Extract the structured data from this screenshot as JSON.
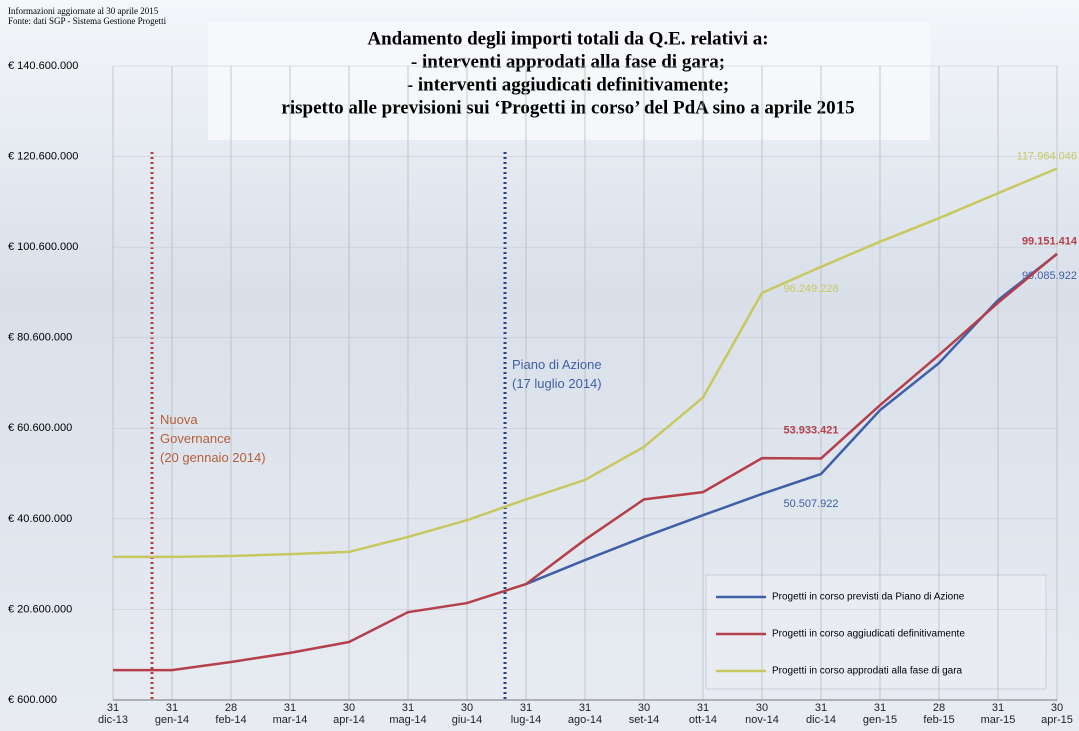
{
  "chart_data": {
    "type": "line",
    "notes": [
      "Informazioni aggiornate al 30 aprile 2015",
      "Fonte: dati SGP - Sistema Gestione Progetti"
    ],
    "title": [
      "Andamento degli importi totali da Q.E. relativi a:",
      "- interventi approdati alla fase di gara;",
      "- interventi aggiudicati definitivamente;",
      "rispetto alle previsioni sui ‘Progetti in corso’ del PdA sino a aprile 2015"
    ],
    "annotations": [
      {
        "text": "Nuova\nGovernance\n(20 gennaio 2014)",
        "color": "#b5603a"
      },
      {
        "text": "Piano di Azione\n(17 luglio 2014)",
        "color": "#3f5fa8"
      }
    ],
    "categories": [
      "31\ndic-13",
      "31\ngen-14",
      "28\nfeb-14",
      "31\nmar-14",
      "30\napr-14",
      "31\nmag-14",
      "30\ngiu-14",
      "31\nlug-14",
      "31\nago-14",
      "30\nset-14",
      "31\nott-14",
      "30\nnov-14",
      "31\ndic-14",
      "31\ngen-15",
      "28\nfeb-15",
      "31\nmar-15",
      "30\napr-15"
    ],
    "series": [
      {
        "name": "Progetti in corso previsti da Piano di Azione",
        "color": "#3f5fa8",
        "values": [
          null,
          null,
          null,
          null,
          null,
          null,
          null,
          26200000,
          31500000,
          36600000,
          41400000,
          46100000,
          50507922,
          64600000,
          75000000,
          88900000,
          99085922
        ],
        "value_labels": [
          null,
          null,
          null,
          null,
          null,
          null,
          null,
          null,
          null,
          null,
          null,
          null,
          "50.507.922",
          null,
          null,
          null,
          "99.085.922"
        ]
      },
      {
        "name": "Progetti in corso aggiudicati definitivamente",
        "color": "#b5404a",
        "values": [
          7200000,
          7200000,
          9000000,
          11000000,
          13400000,
          20000000,
          22000000,
          26200000,
          36000000,
          44900000,
          46500000,
          54000000,
          53933421,
          65700000,
          76800000,
          88300000,
          99151414
        ],
        "value_labels": [
          null,
          null,
          null,
          null,
          null,
          null,
          null,
          null,
          null,
          null,
          null,
          null,
          "53.933.421",
          null,
          null,
          null,
          "99.151.414"
        ]
      },
      {
        "name": "Progetti in corso approdati alla fase di gara",
        "color": "#c8c860",
        "values": [
          32200000,
          32200000,
          32400000,
          32800000,
          33300000,
          36600000,
          40300000,
          44900000,
          49200000,
          56500000,
          67400000,
          90500000,
          96249228,
          101800000,
          107000000,
          112500000,
          117964046
        ],
        "value_labels": [
          null,
          null,
          null,
          null,
          null,
          null,
          null,
          null,
          null,
          null,
          null,
          null,
          "96.249.228",
          null,
          null,
          null,
          "117.964.046"
        ]
      }
    ],
    "ylim": [
      600000,
      140600000
    ],
    "yticks": [
      {
        "value": 600000,
        "label": "€ 600.000"
      },
      {
        "value": 20600000,
        "label": "€ 20.600.000"
      },
      {
        "value": 40600000,
        "label": "€ 40.600.000"
      },
      {
        "value": 60600000,
        "label": "€ 60.600.000"
      },
      {
        "value": 80600000,
        "label": "€ 80.600.000"
      },
      {
        "value": 100600000,
        "label": "€ 100.600.000"
      },
      {
        "value": 120600000,
        "label": "€ 120.600.000"
      },
      {
        "value": 140600000,
        "label": "€ 140.600.000"
      }
    ],
    "grid": true
  }
}
